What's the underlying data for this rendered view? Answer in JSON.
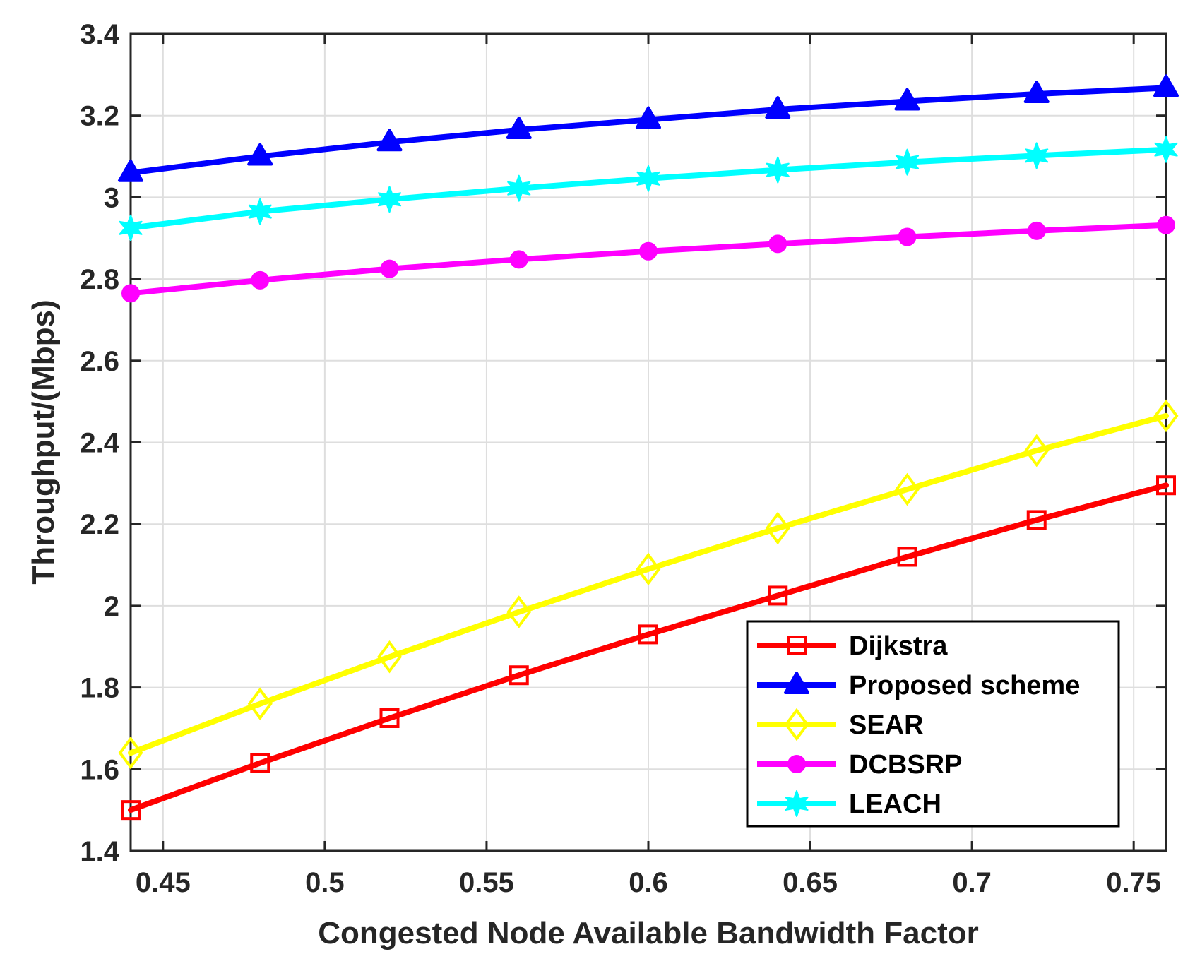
{
  "chart_data": {
    "type": "line",
    "title": "",
    "xlabel": "Congested Node Available Bandwidth Factor",
    "ylabel": "Throughput/(Mbps)",
    "xlim": [
      0.44,
      0.76
    ],
    "ylim": [
      1.4,
      3.4
    ],
    "grid": true,
    "legend_position": "bottom-right",
    "xticks": [
      0.45,
      0.5,
      0.55,
      0.6,
      0.65,
      0.7,
      0.75
    ],
    "xtick_labels": [
      "0.45",
      "0.5",
      "0.55",
      "0.6",
      "0.65",
      "0.7",
      "0.75"
    ],
    "yticks": [
      1.4,
      1.6,
      1.8,
      2.0,
      2.2,
      2.4,
      2.6,
      2.8,
      3.0,
      3.2,
      3.4
    ],
    "ytick_labels": [
      "1.4",
      "1.6",
      "1.8",
      "2",
      "2.2",
      "2.4",
      "2.6",
      "2.8",
      "3",
      "3.2",
      "3.4"
    ],
    "x": [
      0.44,
      0.48,
      0.52,
      0.56,
      0.6,
      0.64,
      0.68,
      0.72,
      0.76
    ],
    "series": [
      {
        "name": "Dijkstra",
        "color": "#ff0000",
        "marker": "square",
        "values": [
          1.5,
          1.615,
          1.725,
          1.83,
          1.93,
          2.025,
          2.12,
          2.21,
          2.295
        ]
      },
      {
        "name": "Proposed scheme",
        "color": "#0000ff",
        "marker": "triangle",
        "values": [
          3.06,
          3.1,
          3.135,
          3.165,
          3.19,
          3.215,
          3.235,
          3.253,
          3.268
        ]
      },
      {
        "name": "SEAR",
        "color": "#ffff00",
        "marker": "diamond",
        "values": [
          1.64,
          1.76,
          1.875,
          1.985,
          2.09,
          2.19,
          2.285,
          2.38,
          2.465
        ]
      },
      {
        "name": "DCBSRP",
        "color": "#ff00ff",
        "marker": "circle",
        "values": [
          2.765,
          2.797,
          2.825,
          2.848,
          2.868,
          2.886,
          2.903,
          2.918,
          2.932
        ]
      },
      {
        "name": "LEACH",
        "color": "#00ffff",
        "marker": "star",
        "values": [
          2.925,
          2.965,
          2.995,
          3.022,
          3.046,
          3.067,
          3.086,
          3.102,
          3.117
        ]
      }
    ]
  }
}
